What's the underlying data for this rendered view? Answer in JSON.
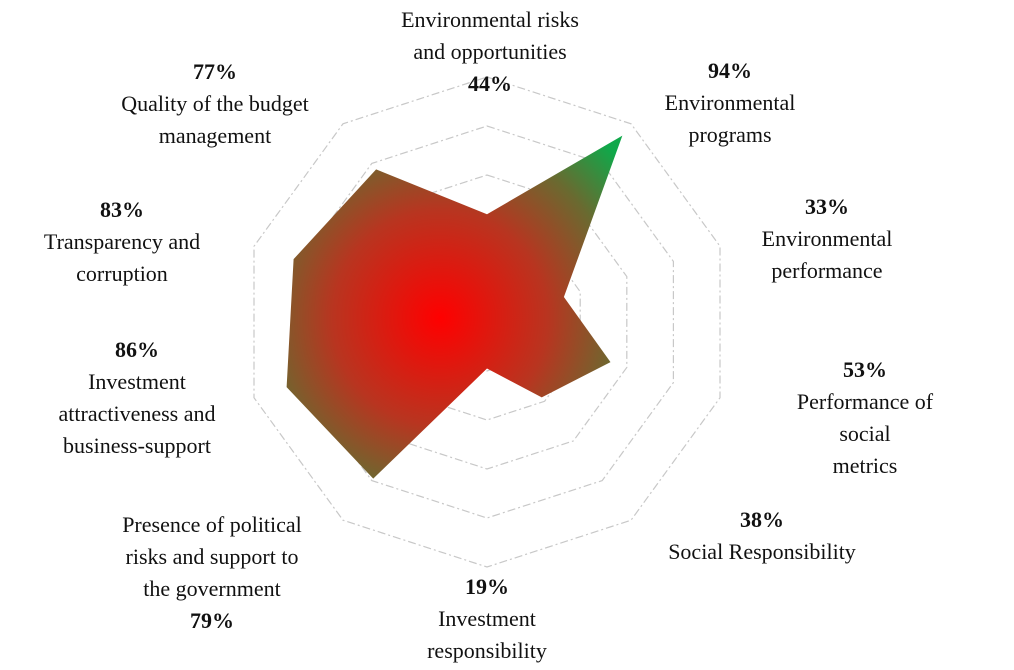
{
  "chart_data": {
    "type": "radar",
    "categories": [
      "Environmental risks\nand opportunities",
      "Environmental\nprograms",
      "Environmental\nperformance",
      "Performance of social\nmetrics",
      "Social Responsibility",
      "Investment\nresponsibility",
      "Presence of political\nrisks and support to\nthe government",
      "Investment\nattractiveness and\nbusiness-support",
      "Transparency and\ncorruption",
      "Quality of the budget\nmanagement"
    ],
    "values": [
      44,
      94,
      33,
      53,
      38,
      19,
      79,
      86,
      83,
      77
    ],
    "value_labels": [
      "44%",
      "94%",
      "33%",
      "53%",
      "38%",
      "19%",
      "79%",
      "86%",
      "83%",
      "77%"
    ],
    "ylim": [
      0,
      100
    ],
    "yticks": [
      20,
      40,
      60,
      80,
      100
    ],
    "grid": true
  }
}
